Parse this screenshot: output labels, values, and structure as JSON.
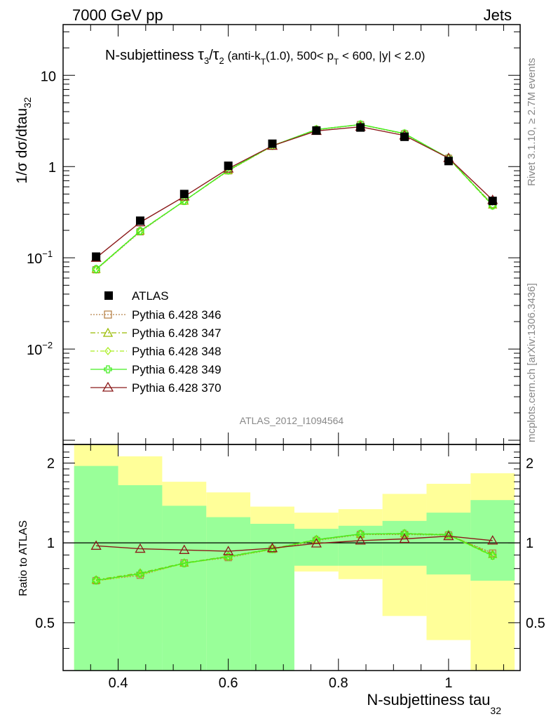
{
  "header": {
    "energy_label": "7000 GeV pp",
    "category_label": "Jets"
  },
  "title": {
    "prefix": "N-subjettiness ",
    "tau3": "τ",
    "sub3": "3",
    "slash": "/",
    "tau2": "τ",
    "sub2": "2",
    "paren_a": " (anti-k",
    "sub_t1": "T",
    "paren_b": "(1.0), 500< p",
    "sub_t2": "T",
    "paren_c": " < 600, |y| < 2.0)"
  },
  "side_labels": {
    "rivet": "Rivet 3.1.10, ≥ 2.7M events",
    "mcplots": "mcplots.cern.ch [arXiv:1306.3436]"
  },
  "analysis_id": "ATLAS_2012_I1094564",
  "axes": {
    "ylabel_main_prefix": "1/σ dσ/dtau",
    "ylabel_main_sub": "32",
    "ylabel_ratio": "Ratio to ATLAS",
    "xlabel_prefix": "N-subjettiness tau",
    "xlabel_sub": "32",
    "main_yticks": [
      {
        "base": "10",
        "exp": "−2",
        "value": 0.01
      },
      {
        "base": "10",
        "exp": "−1",
        "value": 0.1
      },
      {
        "base": "1",
        "exp": "",
        "value": 1
      },
      {
        "base": "10",
        "exp": "",
        "value": 10
      }
    ],
    "ratio_yticks": [
      {
        "label": "0.5",
        "value": 0.5
      },
      {
        "label": "1",
        "value": 1
      },
      {
        "label": "2",
        "value": 2
      }
    ],
    "xticks": [
      {
        "label": "0.4",
        "value": 0.4
      },
      {
        "label": "0.6",
        "value": 0.6
      },
      {
        "label": "0.8",
        "value": 0.8
      },
      {
        "label": "1",
        "value": 1.0
      }
    ]
  },
  "legend": [
    {
      "label": "ATLAS"
    },
    {
      "label": "Pythia 6.428 346"
    },
    {
      "label": "Pythia 6.428 347"
    },
    {
      "label": "Pythia 6.428 348"
    },
    {
      "label": "Pythia 6.428 349"
    },
    {
      "label": "Pythia 6.428 370"
    }
  ],
  "chart_data": {
    "type": "line",
    "x_range": [
      0.3,
      1.13
    ],
    "main_ylim": [
      0.0009,
      36
    ],
    "main_yscale": "log",
    "ratio_ylim": [
      0.33,
      2.35
    ],
    "ratio_yscale": "log",
    "bin_edges": [
      0.32,
      0.4,
      0.48,
      0.56,
      0.64,
      0.72,
      0.8,
      0.88,
      0.96,
      1.04,
      1.12
    ],
    "x": [
      0.36,
      0.44,
      0.52,
      0.6,
      0.68,
      0.76,
      0.84,
      0.92,
      1.0,
      1.08
    ],
    "data": {
      "name": "ATLAS",
      "color": "#000000",
      "values": [
        0.103,
        0.255,
        0.5,
        1.02,
        1.78,
        2.48,
        2.68,
        2.12,
        1.15,
        0.42
      ]
    },
    "band_inner": {
      "color": "#99ff99",
      "low": [
        0.33,
        0.33,
        0.33,
        0.33,
        0.33,
        0.82,
        0.82,
        0.82,
        0.76,
        0.72
      ],
      "high": [
        1.95,
        1.65,
        1.38,
        1.25,
        1.18,
        1.13,
        1.16,
        1.21,
        1.3,
        1.45
      ]
    },
    "band_outer": {
      "color": "#ffff99",
      "low": [
        0.33,
        0.42,
        0.36,
        0.61,
        0.74,
        0.78,
        0.73,
        0.53,
        0.43,
        0.33
      ],
      "high": [
        2.35,
        2.12,
        1.7,
        1.55,
        1.37,
        1.3,
        1.34,
        1.53,
        1.67,
        1.83
      ]
    },
    "series": [
      {
        "name": "Pythia 6.428 346",
        "color": "#b8844a",
        "dash": "2,2",
        "marker": "square",
        "values": [
          0.074,
          0.193,
          0.42,
          0.9,
          1.68,
          2.53,
          2.88,
          2.28,
          1.23,
          0.385
        ],
        "ratio": [
          0.72,
          0.755,
          0.84,
          0.88,
          0.945,
          1.02,
          1.075,
          1.075,
          1.07,
          0.915
        ]
      },
      {
        "name": "Pythia 6.428 347",
        "color": "#99bb00",
        "dash": "7,3,2,3",
        "marker": "triangle",
        "values": [
          0.075,
          0.197,
          0.42,
          0.91,
          1.69,
          2.55,
          2.89,
          2.3,
          1.24,
          0.38
        ],
        "ratio": [
          0.725,
          0.77,
          0.84,
          0.89,
          0.95,
          1.03,
          1.08,
          1.085,
          1.075,
          0.905
        ]
      },
      {
        "name": "Pythia 6.428 348",
        "color": "#aaee22",
        "dash": "6,3,2,3",
        "marker": "diamond",
        "values": [
          0.074,
          0.195,
          0.42,
          0.9,
          1.68,
          2.54,
          2.89,
          2.29,
          1.23,
          0.37
        ],
        "ratio": [
          0.718,
          0.76,
          0.835,
          0.885,
          0.945,
          1.025,
          1.078,
          1.08,
          1.07,
          0.89
        ]
      },
      {
        "name": "Pythia 6.428 349",
        "color": "#44ee22",
        "dash": "",
        "marker": "cross",
        "values": [
          0.075,
          0.196,
          0.42,
          0.91,
          1.69,
          2.55,
          2.89,
          2.3,
          1.24,
          0.375
        ],
        "ratio": [
          0.722,
          0.765,
          0.838,
          0.888,
          0.948,
          1.028,
          1.08,
          1.083,
          1.072,
          0.895
        ]
      },
      {
        "name": "Pythia 6.428 370",
        "color": "#8b1a1a",
        "dash": "",
        "marker": "triangle-open",
        "values": [
          0.1,
          0.245,
          0.47,
          0.95,
          1.69,
          2.46,
          2.73,
          2.19,
          1.24,
          0.43
        ],
        "ratio": [
          0.975,
          0.95,
          0.94,
          0.93,
          0.955,
          0.995,
          1.02,
          1.035,
          1.06,
          1.02
        ]
      }
    ]
  }
}
